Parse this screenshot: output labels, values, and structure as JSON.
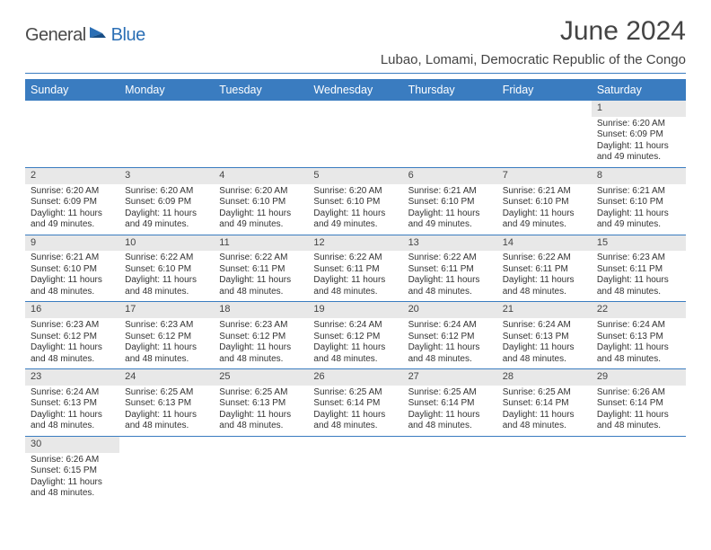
{
  "brand": {
    "text_a": "General",
    "text_b": "Blue"
  },
  "title": "June 2024",
  "location": "Lubao, Lomami, Democratic Republic of the Congo",
  "colors": {
    "header_bg": "#3a7cc0",
    "header_text": "#ffffff",
    "daynum_bg": "#e8e8e8",
    "grid_line": "#3a7cc0",
    "text": "#333333",
    "brand_gray": "#4a4a4a",
    "brand_blue": "#2b6fb5"
  },
  "typography": {
    "title_fontsize": 30,
    "location_fontsize": 15,
    "header_fontsize": 12.5,
    "cell_fontsize": 10
  },
  "weekdays": [
    "Sunday",
    "Monday",
    "Tuesday",
    "Wednesday",
    "Thursday",
    "Friday",
    "Saturday"
  ],
  "weeks": [
    [
      null,
      null,
      null,
      null,
      null,
      null,
      {
        "n": "1",
        "sunrise": "Sunrise: 6:20 AM",
        "sunset": "Sunset: 6:09 PM",
        "day1": "Daylight: 11 hours",
        "day2": "and 49 minutes."
      }
    ],
    [
      {
        "n": "2",
        "sunrise": "Sunrise: 6:20 AM",
        "sunset": "Sunset: 6:09 PM",
        "day1": "Daylight: 11 hours",
        "day2": "and 49 minutes."
      },
      {
        "n": "3",
        "sunrise": "Sunrise: 6:20 AM",
        "sunset": "Sunset: 6:09 PM",
        "day1": "Daylight: 11 hours",
        "day2": "and 49 minutes."
      },
      {
        "n": "4",
        "sunrise": "Sunrise: 6:20 AM",
        "sunset": "Sunset: 6:10 PM",
        "day1": "Daylight: 11 hours",
        "day2": "and 49 minutes."
      },
      {
        "n": "5",
        "sunrise": "Sunrise: 6:20 AM",
        "sunset": "Sunset: 6:10 PM",
        "day1": "Daylight: 11 hours",
        "day2": "and 49 minutes."
      },
      {
        "n": "6",
        "sunrise": "Sunrise: 6:21 AM",
        "sunset": "Sunset: 6:10 PM",
        "day1": "Daylight: 11 hours",
        "day2": "and 49 minutes."
      },
      {
        "n": "7",
        "sunrise": "Sunrise: 6:21 AM",
        "sunset": "Sunset: 6:10 PM",
        "day1": "Daylight: 11 hours",
        "day2": "and 49 minutes."
      },
      {
        "n": "8",
        "sunrise": "Sunrise: 6:21 AM",
        "sunset": "Sunset: 6:10 PM",
        "day1": "Daylight: 11 hours",
        "day2": "and 49 minutes."
      }
    ],
    [
      {
        "n": "9",
        "sunrise": "Sunrise: 6:21 AM",
        "sunset": "Sunset: 6:10 PM",
        "day1": "Daylight: 11 hours",
        "day2": "and 48 minutes."
      },
      {
        "n": "10",
        "sunrise": "Sunrise: 6:22 AM",
        "sunset": "Sunset: 6:10 PM",
        "day1": "Daylight: 11 hours",
        "day2": "and 48 minutes."
      },
      {
        "n": "11",
        "sunrise": "Sunrise: 6:22 AM",
        "sunset": "Sunset: 6:11 PM",
        "day1": "Daylight: 11 hours",
        "day2": "and 48 minutes."
      },
      {
        "n": "12",
        "sunrise": "Sunrise: 6:22 AM",
        "sunset": "Sunset: 6:11 PM",
        "day1": "Daylight: 11 hours",
        "day2": "and 48 minutes."
      },
      {
        "n": "13",
        "sunrise": "Sunrise: 6:22 AM",
        "sunset": "Sunset: 6:11 PM",
        "day1": "Daylight: 11 hours",
        "day2": "and 48 minutes."
      },
      {
        "n": "14",
        "sunrise": "Sunrise: 6:22 AM",
        "sunset": "Sunset: 6:11 PM",
        "day1": "Daylight: 11 hours",
        "day2": "and 48 minutes."
      },
      {
        "n": "15",
        "sunrise": "Sunrise: 6:23 AM",
        "sunset": "Sunset: 6:11 PM",
        "day1": "Daylight: 11 hours",
        "day2": "and 48 minutes."
      }
    ],
    [
      {
        "n": "16",
        "sunrise": "Sunrise: 6:23 AM",
        "sunset": "Sunset: 6:12 PM",
        "day1": "Daylight: 11 hours",
        "day2": "and 48 minutes."
      },
      {
        "n": "17",
        "sunrise": "Sunrise: 6:23 AM",
        "sunset": "Sunset: 6:12 PM",
        "day1": "Daylight: 11 hours",
        "day2": "and 48 minutes."
      },
      {
        "n": "18",
        "sunrise": "Sunrise: 6:23 AM",
        "sunset": "Sunset: 6:12 PM",
        "day1": "Daylight: 11 hours",
        "day2": "and 48 minutes."
      },
      {
        "n": "19",
        "sunrise": "Sunrise: 6:24 AM",
        "sunset": "Sunset: 6:12 PM",
        "day1": "Daylight: 11 hours",
        "day2": "and 48 minutes."
      },
      {
        "n": "20",
        "sunrise": "Sunrise: 6:24 AM",
        "sunset": "Sunset: 6:12 PM",
        "day1": "Daylight: 11 hours",
        "day2": "and 48 minutes."
      },
      {
        "n": "21",
        "sunrise": "Sunrise: 6:24 AM",
        "sunset": "Sunset: 6:13 PM",
        "day1": "Daylight: 11 hours",
        "day2": "and 48 minutes."
      },
      {
        "n": "22",
        "sunrise": "Sunrise: 6:24 AM",
        "sunset": "Sunset: 6:13 PM",
        "day1": "Daylight: 11 hours",
        "day2": "and 48 minutes."
      }
    ],
    [
      {
        "n": "23",
        "sunrise": "Sunrise: 6:24 AM",
        "sunset": "Sunset: 6:13 PM",
        "day1": "Daylight: 11 hours",
        "day2": "and 48 minutes."
      },
      {
        "n": "24",
        "sunrise": "Sunrise: 6:25 AM",
        "sunset": "Sunset: 6:13 PM",
        "day1": "Daylight: 11 hours",
        "day2": "and 48 minutes."
      },
      {
        "n": "25",
        "sunrise": "Sunrise: 6:25 AM",
        "sunset": "Sunset: 6:13 PM",
        "day1": "Daylight: 11 hours",
        "day2": "and 48 minutes."
      },
      {
        "n": "26",
        "sunrise": "Sunrise: 6:25 AM",
        "sunset": "Sunset: 6:14 PM",
        "day1": "Daylight: 11 hours",
        "day2": "and 48 minutes."
      },
      {
        "n": "27",
        "sunrise": "Sunrise: 6:25 AM",
        "sunset": "Sunset: 6:14 PM",
        "day1": "Daylight: 11 hours",
        "day2": "and 48 minutes."
      },
      {
        "n": "28",
        "sunrise": "Sunrise: 6:25 AM",
        "sunset": "Sunset: 6:14 PM",
        "day1": "Daylight: 11 hours",
        "day2": "and 48 minutes."
      },
      {
        "n": "29",
        "sunrise": "Sunrise: 6:26 AM",
        "sunset": "Sunset: 6:14 PM",
        "day1": "Daylight: 11 hours",
        "day2": "and 48 minutes."
      }
    ],
    [
      {
        "n": "30",
        "sunrise": "Sunrise: 6:26 AM",
        "sunset": "Sunset: 6:15 PM",
        "day1": "Daylight: 11 hours",
        "day2": "and 48 minutes."
      },
      null,
      null,
      null,
      null,
      null,
      null
    ]
  ]
}
